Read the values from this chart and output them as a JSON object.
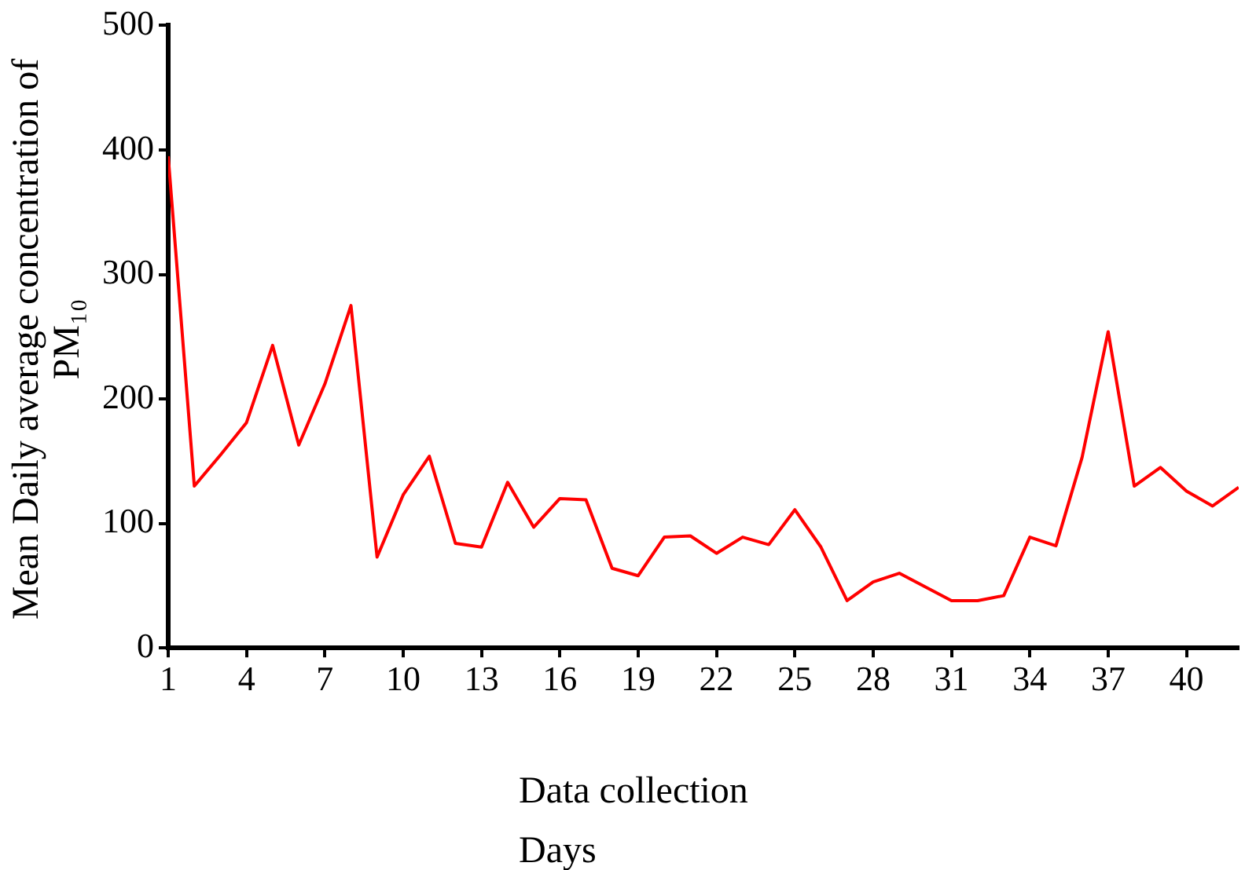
{
  "chart_data": {
    "type": "line",
    "xlabel": "Data collection Days",
    "ylabel": "Mean Daily average concentration of PM₁₀",
    "x": [
      1,
      2,
      3,
      4,
      5,
      6,
      7,
      8,
      9,
      10,
      11,
      12,
      13,
      14,
      15,
      16,
      17,
      18,
      19,
      20,
      21,
      22,
      23,
      24,
      25,
      26,
      27,
      28,
      29,
      30,
      31,
      32,
      33,
      34,
      35,
      36,
      37,
      38,
      39,
      40,
      41,
      42
    ],
    "series": [
      {
        "color": "#ff0000",
        "values": [
          395,
          130,
          155,
          181,
          243,
          163,
          212,
          275,
          73,
          123,
          154,
          84,
          81,
          133,
          97,
          120,
          119,
          64,
          58,
          89,
          90,
          76,
          89,
          83,
          111,
          81,
          38,
          53,
          60,
          49,
          38,
          38,
          42,
          89,
          82,
          153,
          254,
          130,
          145,
          126,
          114,
          129
        ]
      }
    ],
    "xlim": [
      1,
      42
    ],
    "xticks": [
      1,
      4,
      7,
      10,
      13,
      16,
      19,
      22,
      25,
      28,
      31,
      34,
      37,
      40
    ],
    "ylim": [
      0,
      500
    ],
    "yticks": [
      0,
      100,
      200,
      300,
      400,
      500
    ],
    "grid": false,
    "legend": false,
    "marker": "none",
    "line_style": "solid"
  }
}
